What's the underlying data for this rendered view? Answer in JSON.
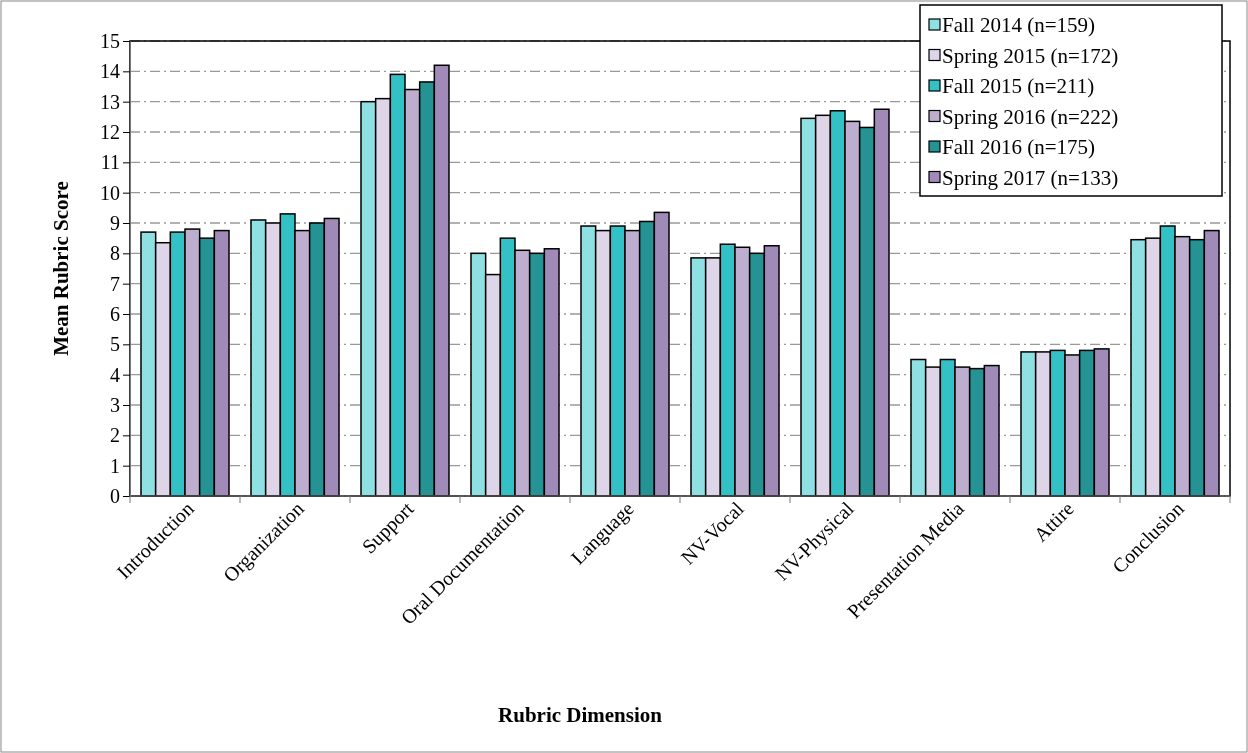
{
  "chart_data": {
    "type": "bar",
    "xlabel": "Rubric Dimension",
    "ylabel": "Mean Rubric Score",
    "categories": [
      "Introduction",
      "Organization",
      "Support",
      "Oral Documentation",
      "Language",
      "NV-Vocal",
      "NV-Physical",
      "Presentation Media",
      "Attire",
      "Conclusion"
    ],
    "series": [
      {
        "name": "Fall 2014 (n=159)",
        "color": "#8ee0e2",
        "values": [
          8.7,
          9.1,
          13.0,
          8.0,
          8.9,
          7.85,
          12.45,
          4.5,
          4.75,
          8.45
        ]
      },
      {
        "name": "Spring 2015 (n=172)",
        "color": "#ded6e8",
        "values": [
          8.35,
          9.0,
          13.1,
          7.3,
          8.75,
          7.85,
          12.55,
          4.25,
          4.75,
          8.5
        ]
      },
      {
        "name": "Fall 2015 (n=211)",
        "color": "#33c1c6",
        "values": [
          8.7,
          9.3,
          13.9,
          8.5,
          8.9,
          8.3,
          12.7,
          4.5,
          4.8,
          8.9
        ]
      },
      {
        "name": "Spring 2016 (n=222)",
        "color": "#bdaed0",
        "values": [
          8.8,
          8.75,
          13.4,
          8.1,
          8.75,
          8.2,
          12.35,
          4.25,
          4.65,
          8.55
        ]
      },
      {
        "name": "Fall 2016 (n=175)",
        "color": "#259393",
        "values": [
          8.5,
          9.0,
          13.65,
          8.0,
          9.05,
          8.0,
          12.15,
          4.2,
          4.8,
          8.45
        ]
      },
      {
        "name": "Spring 2017 (n=133)",
        "color": "#a08ab8",
        "values": [
          8.75,
          9.15,
          14.2,
          8.15,
          9.35,
          8.25,
          12.75,
          4.3,
          4.85,
          8.75
        ]
      }
    ],
    "ylim": [
      0,
      15
    ],
    "yticks": [
      0,
      1,
      2,
      3,
      4,
      5,
      6,
      7,
      8,
      9,
      10,
      11,
      12,
      13,
      14,
      15
    ],
    "grid": "y",
    "legend": "top right"
  }
}
